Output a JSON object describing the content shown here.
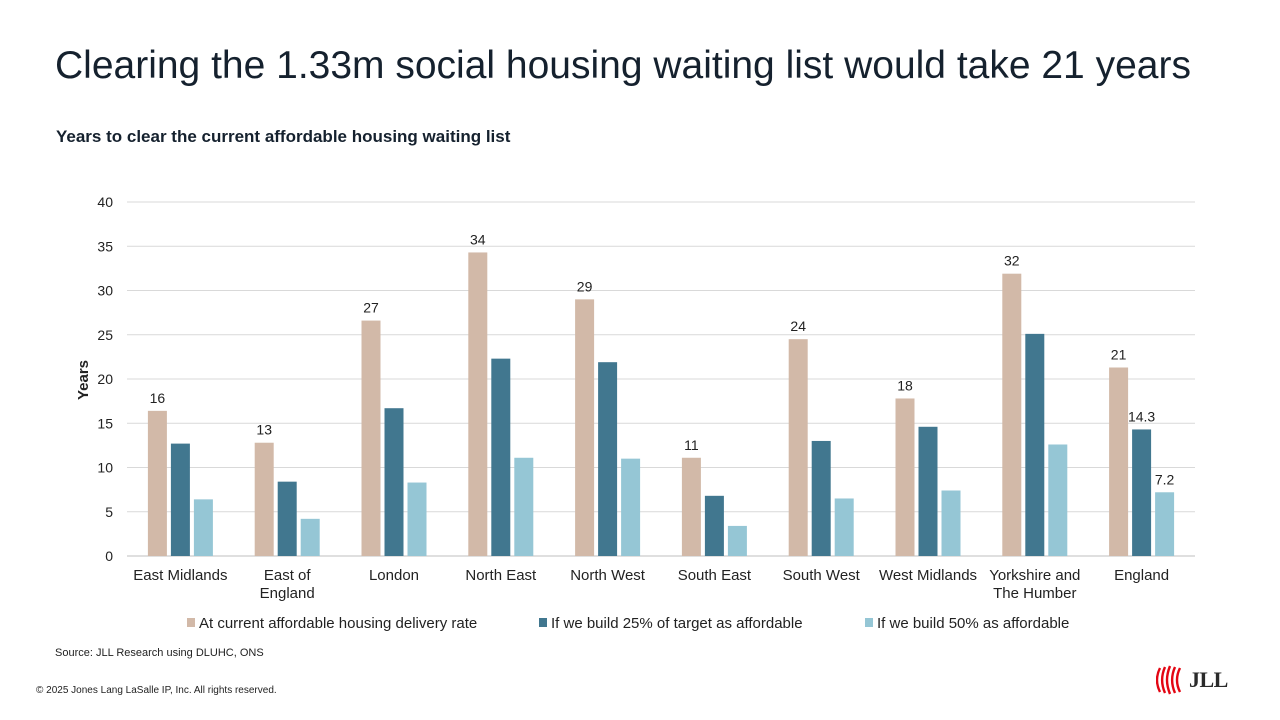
{
  "slide_title": "Clearing the 1.33m social housing waiting list would take 21 years",
  "source": "Source: JLL Research using DLUHC, ONS",
  "copyright": "© 2025 Jones Lang LaSalle IP, Inc. All rights reserved.",
  "logo": {
    "text": "JLL",
    "icon": "jll-logo-icon",
    "color": "#e30613"
  },
  "chart_data": {
    "type": "bar",
    "title": "Years to clear the current affordable housing waiting list",
    "ylabel": "Years",
    "xlabel": "",
    "ylim": [
      0,
      40
    ],
    "yticks": [
      0,
      5,
      10,
      15,
      20,
      25,
      30,
      35,
      40
    ],
    "grid": true,
    "legend_position": "bottom",
    "categories": [
      [
        "East Midlands"
      ],
      [
        "East of",
        "England"
      ],
      [
        "London"
      ],
      [
        "North East"
      ],
      [
        "North West"
      ],
      [
        "South East"
      ],
      [
        "South West"
      ],
      [
        "West Midlands"
      ],
      [
        "Yorkshire and",
        "The Humber"
      ],
      [
        "England"
      ]
    ],
    "series": [
      {
        "name": "At current affordable housing delivery rate",
        "color": "#d2b9a8",
        "values": [
          16.4,
          12.8,
          26.6,
          34.3,
          29.0,
          11.1,
          24.5,
          17.8,
          31.9,
          21.3
        ],
        "labels": [
          "16",
          "13",
          "27",
          "34",
          "29",
          "11",
          "24",
          "18",
          "32",
          "21"
        ]
      },
      {
        "name": "If we build 25% of target as affordable",
        "color": "#41778f",
        "values": [
          12.7,
          8.4,
          16.7,
          22.3,
          21.9,
          6.8,
          13.0,
          14.6,
          25.1,
          14.3
        ],
        "labels": [
          "",
          "",
          "",
          "",
          "",
          "",
          "",
          "",
          "",
          "14.3"
        ]
      },
      {
        "name": "If we build 50% as affordable",
        "color": "#95c6d5",
        "values": [
          6.4,
          4.2,
          8.3,
          11.1,
          11.0,
          3.4,
          6.5,
          7.4,
          12.6,
          7.2
        ],
        "labels": [
          "",
          "",
          "",
          "",
          "",
          "",
          "",
          "",
          "",
          "7.2"
        ]
      }
    ]
  }
}
